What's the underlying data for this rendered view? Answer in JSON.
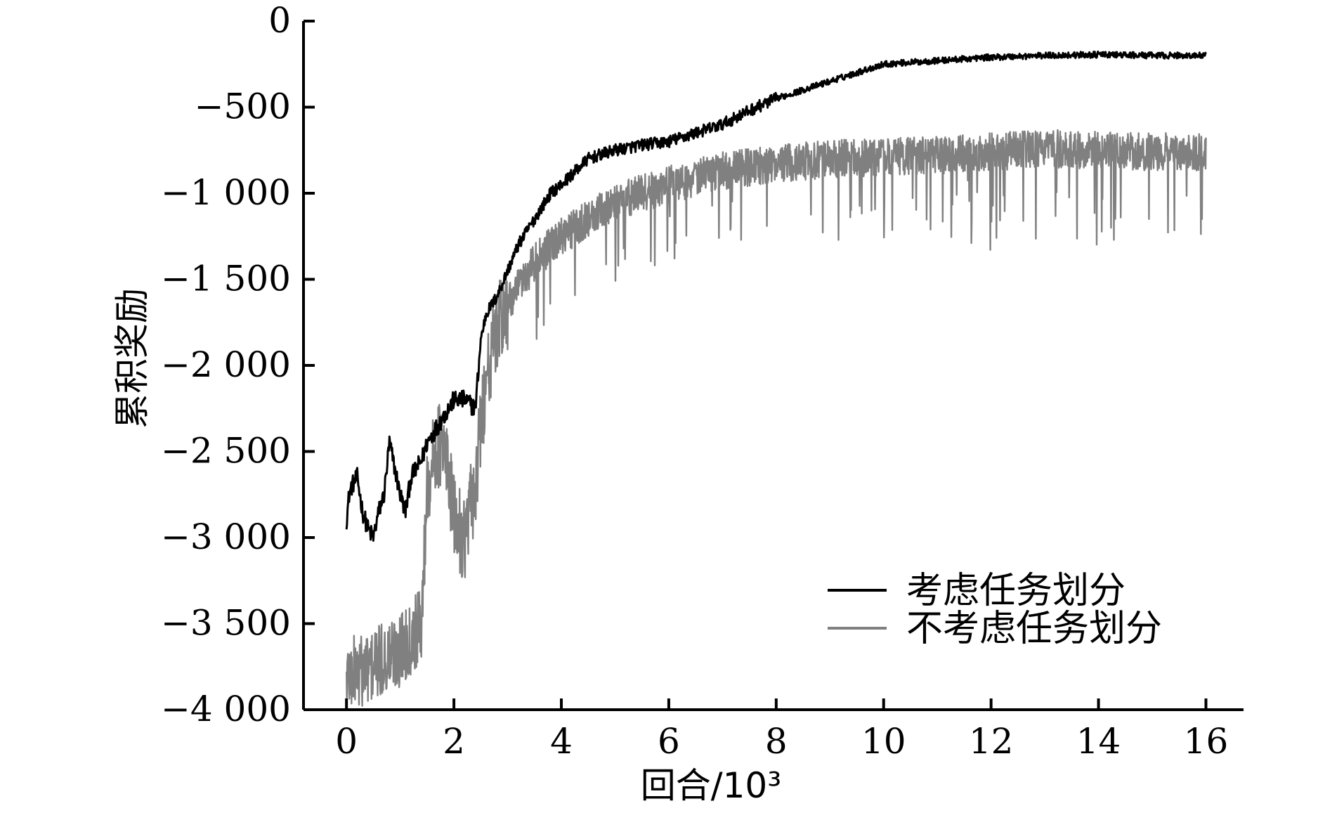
{
  "chart_data": {
    "type": "line",
    "title": "",
    "xlabel": "回合/10³",
    "ylabel": "累积奖励",
    "xlim": [
      -0.8,
      16.7
    ],
    "ylim": [
      -4000,
      0
    ],
    "xticks": [
      0,
      2,
      4,
      6,
      8,
      10,
      12,
      14,
      16
    ],
    "xtick_labels": [
      "0",
      "2",
      "4",
      "6",
      "8",
      "10",
      "12",
      "14",
      "16"
    ],
    "yticks": [
      0,
      -500,
      -1000,
      -1500,
      -2000,
      -2500,
      -3000,
      -3500,
      -4000
    ],
    "ytick_labels": [
      "0",
      "−500",
      "−1 000",
      "−1 500",
      "−2 000",
      "−2 500",
      "−3 000",
      "−3 500",
      "−4 000"
    ],
    "grid": false,
    "legend_position": "bottom-right",
    "series": [
      {
        "name": "考虑任务划分",
        "color": "#000000",
        "x": [
          0,
          0.05,
          0.1,
          0.2,
          0.3,
          0.4,
          0.5,
          0.6,
          0.7,
          0.8,
          0.9,
          1.0,
          1.1,
          1.2,
          1.3,
          1.4,
          1.5,
          1.6,
          1.8,
          2.0,
          2.2,
          2.4,
          2.5,
          2.6,
          2.8,
          3.0,
          3.2,
          3.4,
          3.6,
          3.8,
          4.0,
          4.5,
          5.0,
          5.5,
          6.0,
          6.5,
          7.0,
          7.5,
          8.0,
          8.5,
          9.0,
          9.5,
          10.0,
          11.0,
          12.0,
          13.0,
          14.0,
          15.0,
          16.0
        ],
        "y": [
          -2900,
          -2750,
          -2700,
          -2650,
          -2850,
          -2950,
          -3000,
          -2850,
          -2750,
          -2450,
          -2600,
          -2750,
          -2850,
          -2650,
          -2600,
          -2550,
          -2450,
          -2400,
          -2300,
          -2200,
          -2200,
          -2250,
          -1850,
          -1700,
          -1600,
          -1450,
          -1300,
          -1200,
          -1100,
          -1000,
          -950,
          -800,
          -750,
          -720,
          -700,
          -650,
          -600,
          -520,
          -450,
          -400,
          -350,
          -300,
          -250,
          -230,
          -210,
          -200,
          -195,
          -200,
          -200
        ]
      },
      {
        "name": "不考虑任务划分",
        "color": "#808080",
        "x": [
          0,
          0.5,
          1.0,
          1.4,
          1.5,
          1.7,
          1.9,
          2.0,
          2.2,
          2.4,
          2.6,
          2.8,
          3.0,
          3.5,
          4.0,
          5.0,
          6.0,
          7.0,
          8.0,
          9.0,
          10.0,
          11.0,
          12.0,
          13.0,
          14.0,
          15.0,
          16.0
        ],
        "y": [
          -3800,
          -3750,
          -3650,
          -3500,
          -2700,
          -2450,
          -2600,
          -2900,
          -3000,
          -2700,
          -2050,
          -1800,
          -1650,
          -1400,
          -1250,
          -1050,
          -950,
          -870,
          -830,
          -800,
          -790,
          -780,
          -760,
          -740,
          -750,
          -760,
          -760
        ]
      }
    ]
  }
}
